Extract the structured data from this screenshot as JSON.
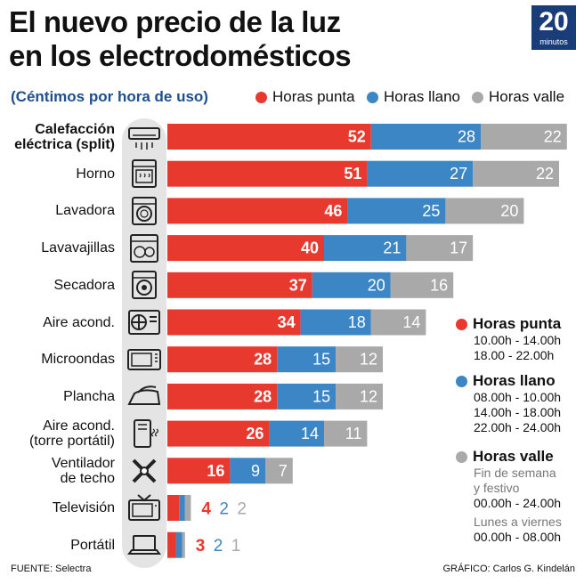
{
  "title_line1": "El nuevo precio de la luz",
  "title_line2": "en los electrodomésticos",
  "logo_number": "20",
  "logo_text": "minutos",
  "colors": {
    "punta": "#e8392f",
    "llano": "#3d86c6",
    "valle": "#a9a9a9",
    "brand": "#1a3d7a"
  },
  "side_legend": {
    "punta": {
      "title": "Horas punta",
      "lines": [
        "10.00h - 14.00h",
        "18.00 - 22.00h"
      ]
    },
    "llano": {
      "title": "Horas llano",
      "lines": [
        "08.00h - 10.00h",
        "14.00h - 18.00h",
        "22.00h - 24.00h"
      ]
    },
    "valle": {
      "title": "Horas valle",
      "lines": [
        "Fin de semana",
        "y festivo",
        "00.00h - 24.00h",
        "Lunes a viernes",
        "00.00h - 08.00h"
      ]
    }
  },
  "footer": {
    "source": "FUENTE: Selectra",
    "credit": "GRÁFICO: Carlos G. Kindelán"
  },
  "chart_data": {
    "type": "bar",
    "orientation": "horizontal",
    "stacked": true,
    "title": "El nuevo precio de la luz en los electrodomésticos",
    "subtitle": "(Céntimos por hora de uso)",
    "categories": [
      "Calefacción eléctrica (split)",
      "Horno",
      "Lavadora",
      "Lavavajillas",
      "Secadora",
      "Aire acond.",
      "Microondas",
      "Plancha",
      "Aire acond. (torre portátil)",
      "Ventilador de techo",
      "Televisión",
      "Portátil"
    ],
    "label_lines": [
      [
        "Calefacción",
        "eléctrica (split)"
      ],
      [
        "Horno"
      ],
      [
        "Lavadora"
      ],
      [
        "Lavavajillas"
      ],
      [
        "Secadora"
      ],
      [
        "Aire acond."
      ],
      [
        "Microondas"
      ],
      [
        "Plancha"
      ],
      [
        "Aire acond.",
        "(torre portátil)"
      ],
      [
        "Ventilador",
        "de techo"
      ],
      [
        "Televisión"
      ],
      [
        "Portátil"
      ]
    ],
    "icons": [
      "split-ac-icon",
      "oven-icon",
      "washing-machine-icon",
      "dishwasher-icon",
      "dryer-icon",
      "air-conditioner-icon",
      "microwave-icon",
      "iron-icon",
      "portable-ac-icon",
      "ceiling-fan-icon",
      "television-icon",
      "laptop-icon"
    ],
    "series": [
      {
        "name": "Horas punta",
        "values": [
          52,
          51,
          46,
          40,
          37,
          34,
          28,
          28,
          26,
          16,
          4,
          3
        ]
      },
      {
        "name": "Horas llano",
        "values": [
          28,
          27,
          25,
          21,
          20,
          18,
          15,
          15,
          14,
          9,
          2,
          2
        ]
      },
      {
        "name": "Horas valle",
        "values": [
          22,
          22,
          20,
          17,
          16,
          14,
          12,
          12,
          11,
          7,
          2,
          1
        ]
      }
    ],
    "xlim": [
      0,
      102
    ],
    "legend": "top-right"
  }
}
